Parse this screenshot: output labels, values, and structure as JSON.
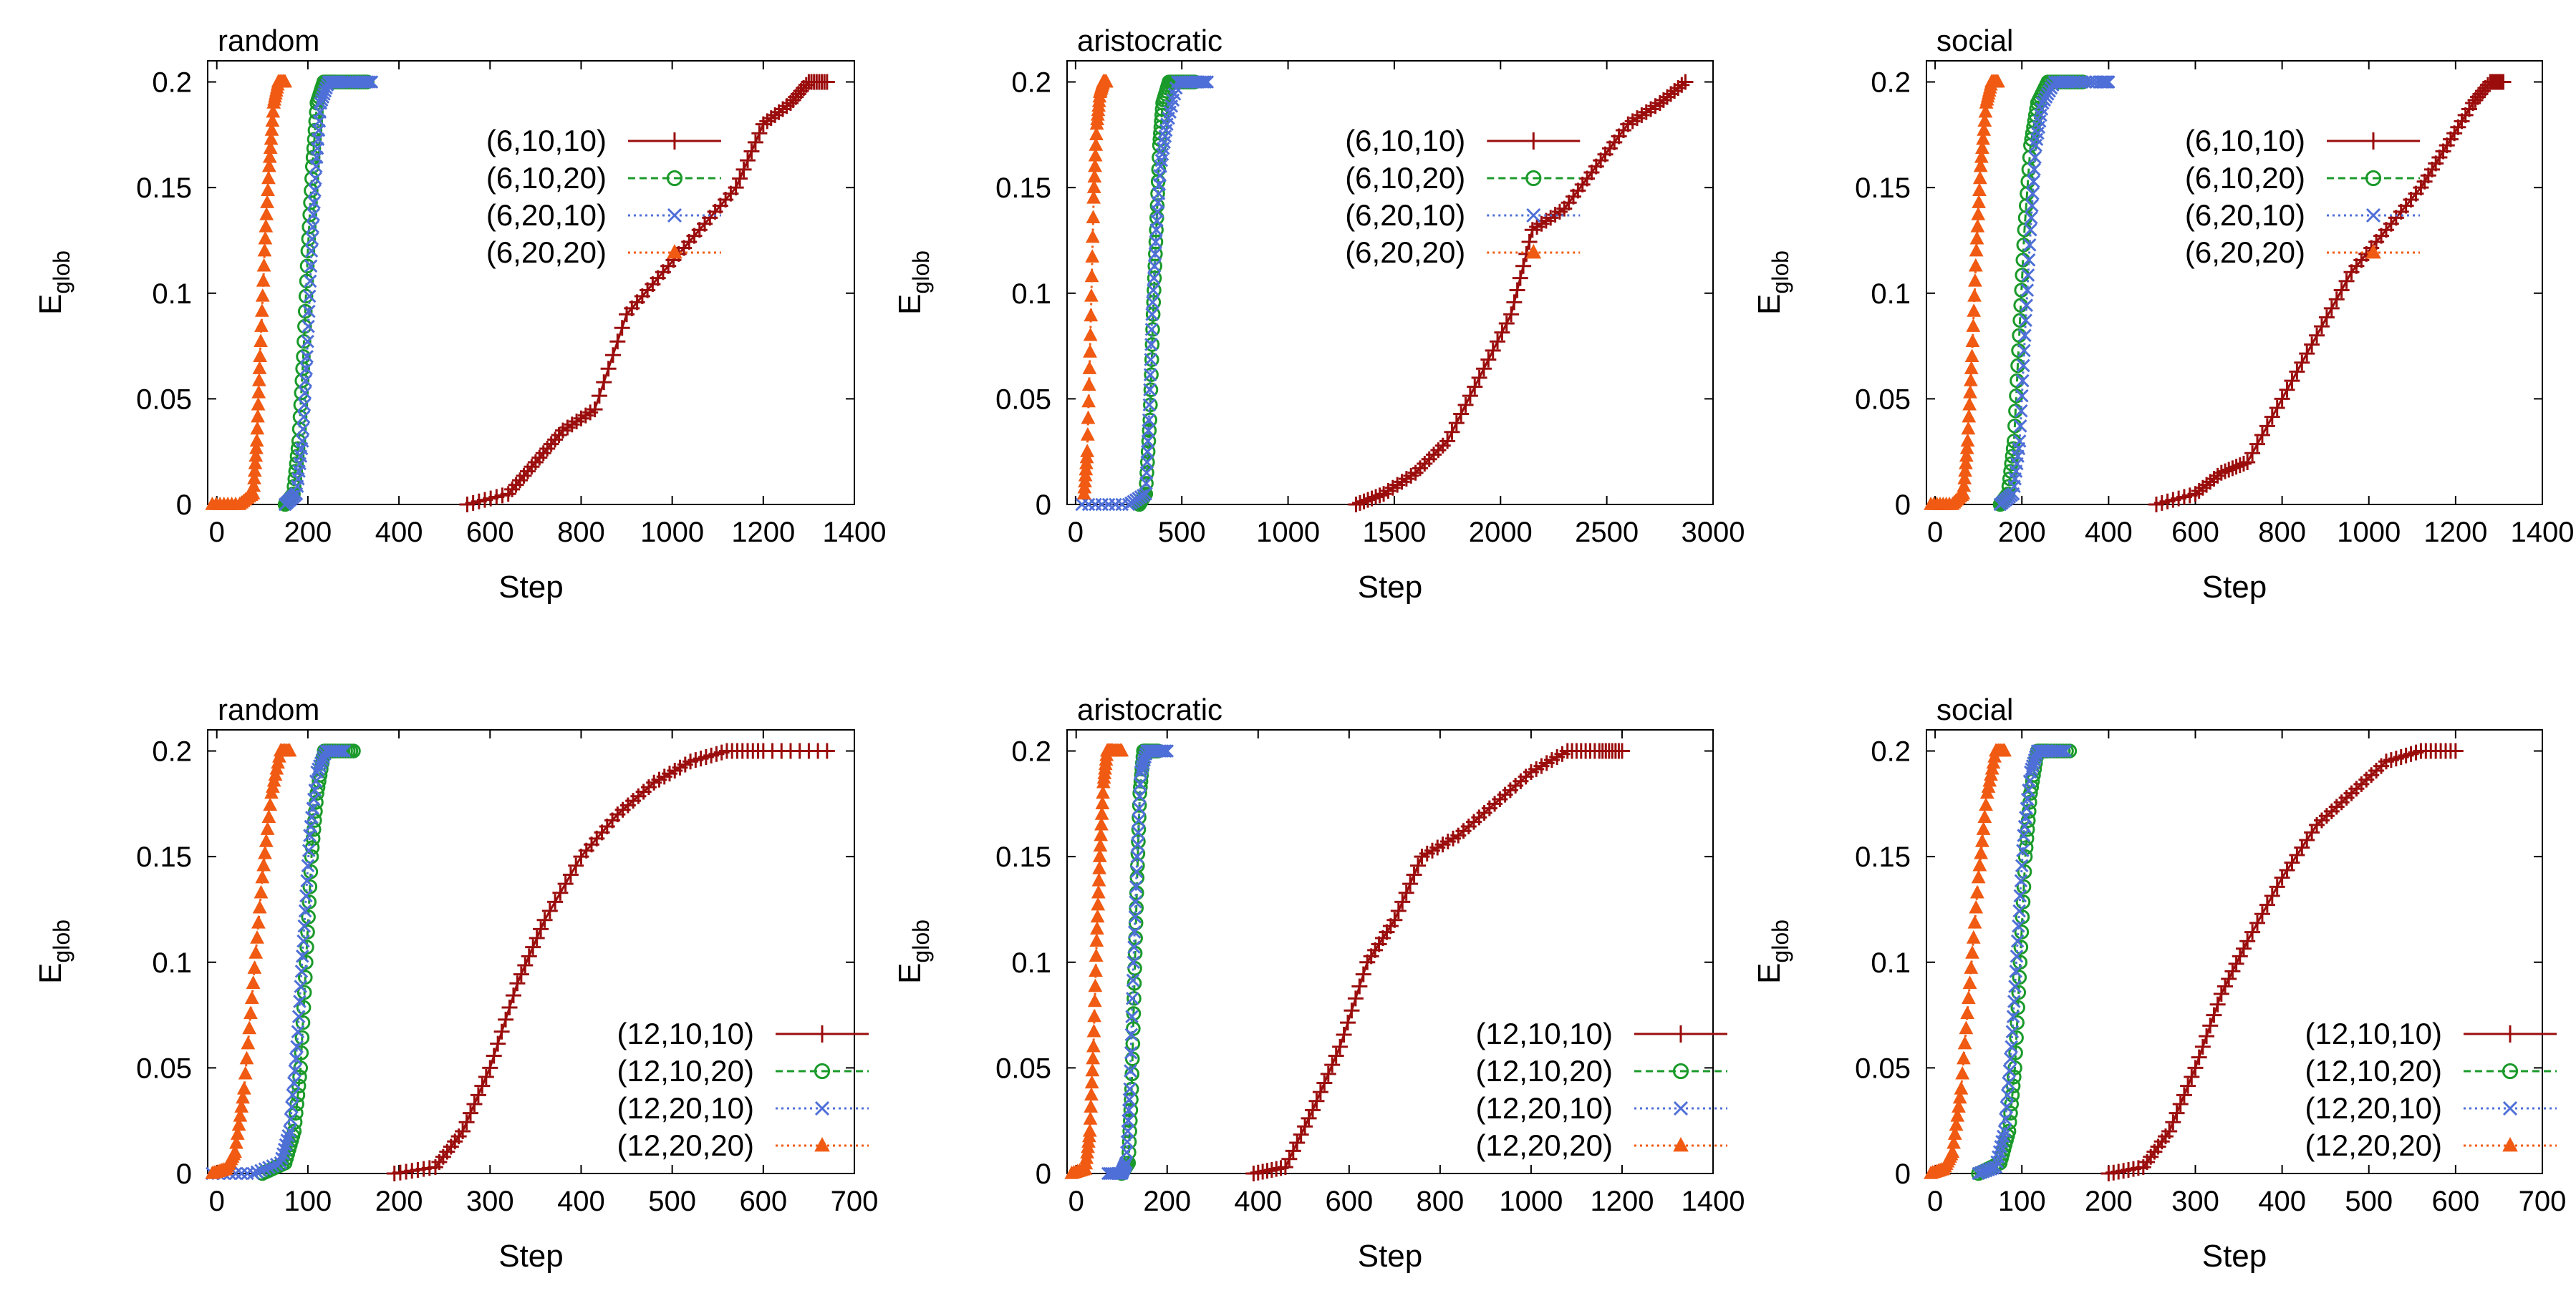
{
  "chart_data": [
    {
      "type": "line",
      "title": "random",
      "xlabel": "Step",
      "ylabel": "E",
      "ylabel_sub": "glob",
      "xlim": [
        -20,
        1400
      ],
      "ylim": [
        0,
        0.21
      ],
      "xticks": [
        0,
        200,
        400,
        600,
        800,
        1000,
        1200,
        1400
      ],
      "yticks": [
        0,
        0.05,
        0.1,
        0.15,
        0.2
      ],
      "yticklabels": [
        "0",
        "0.05",
        "0.1",
        "0.15",
        "0.2"
      ],
      "legend_position": "top-center",
      "series": [
        {
          "name": "(6,10,10)",
          "color": "#9b0d0d",
          "marker": "plus",
          "line": "solid",
          "x": [
            550,
            640,
            700,
            760,
            830,
            900,
            980,
            1060,
            1140,
            1200,
            1260,
            1300,
            1340
          ],
          "y": [
            0,
            0.005,
            0.02,
            0.035,
            0.045,
            0.09,
            0.11,
            0.13,
            0.15,
            0.18,
            0.19,
            0.2,
            0.2
          ]
        },
        {
          "name": "(6,10,20)",
          "color": "#1a9a2a",
          "marker": "circle",
          "line": "dashed",
          "x": [
            150,
            168,
            180,
            190,
            200,
            210,
            220,
            235,
            260,
            300,
            330
          ],
          "y": [
            0,
            0.005,
            0.03,
            0.07,
            0.12,
            0.16,
            0.19,
            0.2,
            0.2,
            0.2,
            0.2
          ]
        },
        {
          "name": "(6,20,10)",
          "color": "#4f6fd8",
          "marker": "cross",
          "line": "dotted",
          "x": [
            150,
            175,
            188,
            198,
            208,
            218,
            228,
            245,
            270,
            310,
            340
          ],
          "y": [
            0,
            0.005,
            0.03,
            0.07,
            0.12,
            0.16,
            0.19,
            0.2,
            0.2,
            0.2,
            0.2
          ]
        },
        {
          "name": "(6,20,20)",
          "color": "#f05a12",
          "marker": "triangle",
          "line": "dotted",
          "x": [
            -10,
            50,
            80,
            88,
            95,
            105,
            115,
            125,
            135,
            150
          ],
          "y": [
            0,
            0,
            0.005,
            0.03,
            0.07,
            0.12,
            0.16,
            0.19,
            0.2,
            0.2
          ]
        }
      ]
    },
    {
      "type": "line",
      "title": "aristocratic",
      "xlabel": "Step",
      "ylabel": "E",
      "ylabel_sub": "glob",
      "xlim": [
        -40,
        3000
      ],
      "ylim": [
        0,
        0.21
      ],
      "xticks": [
        0,
        500,
        1000,
        1500,
        2000,
        2500,
        3000
      ],
      "yticks": [
        0,
        0.05,
        0.1,
        0.15,
        0.2
      ],
      "yticklabels": [
        "0",
        "0.05",
        "0.1",
        "0.15",
        "0.2"
      ],
      "legend_position": "top-center",
      "series": [
        {
          "name": "(6,10,10)",
          "color": "#9b0d0d",
          "marker": "plus",
          "line": "solid",
          "x": [
            1320,
            1450,
            1600,
            1750,
            1900,
            2050,
            2150,
            2300,
            2450,
            2600,
            2750,
            2870
          ],
          "y": [
            0,
            0.005,
            0.015,
            0.03,
            0.06,
            0.09,
            0.13,
            0.14,
            0.16,
            0.18,
            0.19,
            0.2
          ]
        },
        {
          "name": "(6,10,20)",
          "color": "#1a9a2a",
          "marker": "circle",
          "line": "dashed",
          "x": [
            300,
            330,
            350,
            365,
            380,
            395,
            410,
            440,
            500,
            560
          ],
          "y": [
            0,
            0.005,
            0.04,
            0.09,
            0.13,
            0.17,
            0.19,
            0.2,
            0.2,
            0.2
          ]
        },
        {
          "name": "(6,20,10)",
          "color": "#4f6fd8",
          "marker": "cross",
          "line": "dotted",
          "x": [
            30,
            250,
            330,
            345,
            360,
            380,
            400,
            430,
            480,
            560,
            620
          ],
          "y": [
            0,
            0,
            0.005,
            0.04,
            0.09,
            0.13,
            0.16,
            0.18,
            0.2,
            0.2,
            0.2
          ]
        },
        {
          "name": "(6,20,20)",
          "color": "#f05a12",
          "marker": "triangle",
          "line": "dotted",
          "x": [
            40,
            55,
            70,
            85,
            100,
            115,
            130,
            145
          ],
          "y": [
            0.005,
            0.025,
            0.08,
            0.145,
            0.18,
            0.195,
            0.2,
            0.2
          ]
        }
      ]
    },
    {
      "type": "line",
      "title": "social",
      "xlabel": "Step",
      "ylabel": "E",
      "ylabel_sub": "glob",
      "xlim": [
        -20,
        1400
      ],
      "ylim": [
        0,
        0.21
      ],
      "xticks": [
        0,
        200,
        400,
        600,
        800,
        1000,
        1200,
        1400
      ],
      "yticks": [
        0,
        0.05,
        0.1,
        0.15,
        0.2
      ],
      "yticklabels": [
        "0",
        "0.05",
        "0.1",
        "0.15",
        "0.2"
      ],
      "legend_position": "top-center",
      "series": [
        {
          "name": "(6,10,10)",
          "color": "#9b0d0d",
          "marker": "plus",
          "line": "solid",
          "x": [
            510,
            600,
            660,
            720,
            800,
            880,
            960,
            1040,
            1120,
            1180,
            1240,
            1280,
            1310
          ],
          "y": [
            0,
            0.005,
            0.015,
            0.02,
            0.05,
            0.08,
            0.11,
            0.13,
            0.15,
            0.17,
            0.19,
            0.2,
            0.2
          ]
        },
        {
          "name": "(6,10,20)",
          "color": "#1a9a2a",
          "marker": "circle",
          "line": "dashed",
          "x": [
            150,
            168,
            182,
            194,
            206,
            220,
            236,
            260,
            300,
            340
          ],
          "y": [
            0,
            0.005,
            0.03,
            0.08,
            0.13,
            0.17,
            0.19,
            0.2,
            0.2,
            0.2
          ]
        },
        {
          "name": "(6,20,10)",
          "color": "#4f6fd8",
          "marker": "cross",
          "line": "dotted",
          "x": [
            150,
            180,
            195,
            207,
            220,
            232,
            248,
            275,
            320,
            380,
            400
          ],
          "y": [
            0,
            0.005,
            0.03,
            0.08,
            0.13,
            0.17,
            0.19,
            0.2,
            0.2,
            0.2,
            0.2
          ]
        },
        {
          "name": "(6,20,20)",
          "color": "#f05a12",
          "marker": "triangle",
          "line": "dotted",
          "x": [
            -10,
            40,
            65,
            75,
            85,
            95,
            105,
            118,
            130,
            145
          ],
          "y": [
            0,
            0,
            0.005,
            0.03,
            0.07,
            0.12,
            0.16,
            0.19,
            0.2,
            0.2
          ]
        }
      ]
    },
    {
      "type": "line",
      "title": "random",
      "xlabel": "Step",
      "ylabel": "E",
      "ylabel_sub": "glob",
      "xlim": [
        -10,
        700
      ],
      "ylim": [
        0,
        0.21
      ],
      "xticks": [
        0,
        100,
        200,
        300,
        400,
        500,
        600,
        700
      ],
      "yticks": [
        0,
        0.05,
        0.1,
        0.15,
        0.2
      ],
      "yticklabels": [
        "0",
        "0.05",
        "0.1",
        "0.15",
        "0.2"
      ],
      "legend_position": "bottom-right",
      "series": [
        {
          "name": "(12,10,10)",
          "color": "#9b0d0d",
          "marker": "plus",
          "line": "solid",
          "x": [
            195,
            240,
            270,
            300,
            330,
            360,
            400,
            440,
            480,
            520,
            560,
            600,
            670
          ],
          "y": [
            0,
            0.003,
            0.02,
            0.05,
            0.09,
            0.12,
            0.15,
            0.17,
            0.185,
            0.195,
            0.2,
            0.2,
            0.2
          ]
        },
        {
          "name": "(12,10,20)",
          "color": "#1a9a2a",
          "marker": "circle",
          "line": "dashed",
          "x": [
            50,
            75,
            85,
            92,
            98,
            104,
            110,
            118,
            130,
            150
          ],
          "y": [
            0,
            0.005,
            0.02,
            0.05,
            0.1,
            0.15,
            0.18,
            0.2,
            0.2,
            0.2
          ]
        },
        {
          "name": "(12,20,10)",
          "color": "#4f6fd8",
          "marker": "cross",
          "line": "dotted",
          "x": [
            -5,
            40,
            70,
            80,
            88,
            95,
            102,
            110,
            120,
            140
          ],
          "y": [
            0,
            0,
            0.005,
            0.02,
            0.06,
            0.11,
            0.16,
            0.19,
            0.2,
            0.2
          ]
        },
        {
          "name": "(12,20,20)",
          "color": "#f05a12",
          "marker": "triangle",
          "line": "dotted",
          "x": [
            -5,
            10,
            20,
            30,
            40,
            50,
            60,
            70,
            80
          ],
          "y": [
            0,
            0.002,
            0.01,
            0.04,
            0.09,
            0.14,
            0.18,
            0.2,
            0.2
          ]
        }
      ]
    },
    {
      "type": "line",
      "title": "aristocratic",
      "xlabel": "Step",
      "ylabel": "E",
      "ylabel_sub": "glob",
      "xlim": [
        -20,
        1400
      ],
      "ylim": [
        0,
        0.21
      ],
      "xticks": [
        0,
        200,
        400,
        600,
        800,
        1000,
        1200,
        1400
      ],
      "yticks": [
        0,
        0.05,
        0.1,
        0.15,
        0.2
      ],
      "yticklabels": [
        "0",
        "0.05",
        "0.1",
        "0.15",
        "0.2"
      ],
      "legend_position": "bottom-right",
      "series": [
        {
          "name": "(12,10,10)",
          "color": "#9b0d0d",
          "marker": "plus",
          "line": "solid",
          "x": [
            390,
            460,
            520,
            580,
            640,
            700,
            760,
            840,
            920,
            1000,
            1080,
            1150,
            1200
          ],
          "y": [
            0,
            0.003,
            0.03,
            0.06,
            0.1,
            0.12,
            0.15,
            0.16,
            0.175,
            0.19,
            0.2,
            0.2,
            0.2
          ]
        },
        {
          "name": "(12,10,20)",
          "color": "#1a9a2a",
          "marker": "circle",
          "line": "dashed",
          "x": [
            100,
            115,
            122,
            128,
            134,
            140,
            148,
            160,
            180
          ],
          "y": [
            0,
            0.005,
            0.04,
            0.09,
            0.14,
            0.18,
            0.2,
            0.2,
            0.2
          ]
        },
        {
          "name": "(12,20,10)",
          "color": "#4f6fd8",
          "marker": "cross",
          "line": "dotted",
          "x": [
            70,
            100,
            110,
            118,
            126,
            134,
            142,
            155,
            175,
            200
          ],
          "y": [
            0,
            0,
            0.005,
            0.04,
            0.1,
            0.15,
            0.19,
            0.2,
            0.2,
            0.2
          ]
        },
        {
          "name": "(12,20,20)",
          "color": "#f05a12",
          "marker": "triangle",
          "line": "dotted",
          "x": [
            -10,
            20,
            30,
            38,
            45,
            52,
            60,
            68,
            80,
            100
          ],
          "y": [
            0,
            0.002,
            0.02,
            0.06,
            0.11,
            0.15,
            0.185,
            0.2,
            0.2,
            0.2
          ]
        }
      ]
    },
    {
      "type": "line",
      "title": "social",
      "xlabel": "Step",
      "ylabel": "E",
      "ylabel_sub": "glob",
      "xlim": [
        -10,
        700
      ],
      "ylim": [
        0,
        0.21
      ],
      "xticks": [
        0,
        100,
        200,
        300,
        400,
        500,
        600,
        700
      ],
      "yticks": [
        0,
        0.05,
        0.1,
        0.15,
        0.2
      ],
      "yticklabels": [
        "0",
        "0.05",
        "0.1",
        "0.15",
        "0.2"
      ],
      "legend_position": "bottom-right",
      "series": [
        {
          "name": "(12,10,10)",
          "color": "#9b0d0d",
          "marker": "plus",
          "line": "solid",
          "x": [
            200,
            240,
            270,
            300,
            330,
            360,
            400,
            440,
            480,
            520,
            560,
            600
          ],
          "y": [
            0,
            0.003,
            0.02,
            0.05,
            0.085,
            0.11,
            0.14,
            0.165,
            0.18,
            0.195,
            0.2,
            0.2
          ]
        },
        {
          "name": "(12,10,20)",
          "color": "#1a9a2a",
          "marker": "circle",
          "line": "dashed",
          "x": [
            50,
            75,
            85,
            92,
            98,
            104,
            110,
            118,
            130,
            155
          ],
          "y": [
            0,
            0.005,
            0.02,
            0.05,
            0.1,
            0.15,
            0.18,
            0.2,
            0.2,
            0.2
          ]
        },
        {
          "name": "(12,20,10)",
          "color": "#4f6fd8",
          "marker": "cross",
          "line": "dotted",
          "x": [
            50,
            70,
            80,
            88,
            95,
            102,
            110,
            118,
            130,
            150
          ],
          "y": [
            0,
            0.003,
            0.02,
            0.06,
            0.11,
            0.16,
            0.19,
            0.2,
            0.2,
            0.2
          ]
        },
        {
          "name": "(12,20,20)",
          "color": "#f05a12",
          "marker": "triangle",
          "line": "dotted",
          "x": [
            -5,
            10,
            20,
            30,
            40,
            50,
            60,
            70,
            80
          ],
          "y": [
            0,
            0.002,
            0.01,
            0.04,
            0.09,
            0.14,
            0.18,
            0.2,
            0.2
          ]
        }
      ]
    }
  ]
}
